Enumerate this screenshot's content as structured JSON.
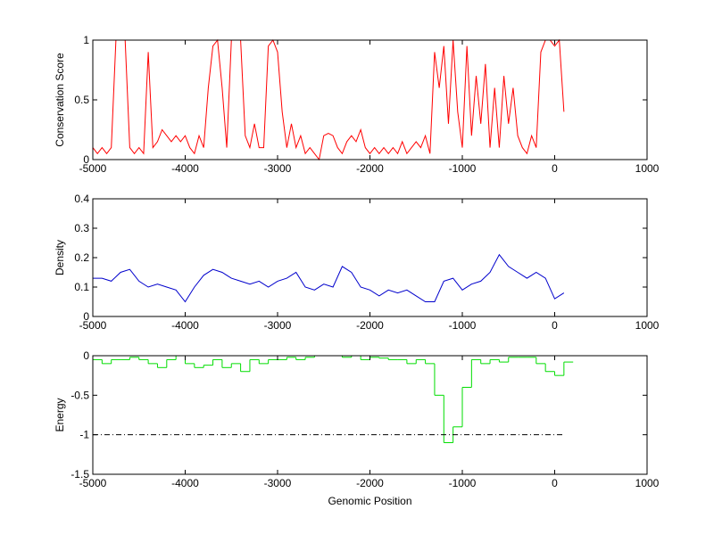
{
  "chart_data": [
    {
      "type": "line",
      "ylabel": "Conservation Score",
      "xlim": [
        -5000,
        1000
      ],
      "xticks": [
        -5000,
        -4000,
        -3000,
        -2000,
        -1000,
        0,
        1000
      ],
      "ylim": [
        0,
        1
      ],
      "yticks": [
        0,
        0.5,
        1
      ],
      "series": [
        {
          "color": "#ff0000",
          "style": "line",
          "x": [
            -5000,
            -4950,
            -4900,
            -4850,
            -4800,
            -4750,
            -4700,
            -4650,
            -4600,
            -4550,
            -4500,
            -4450,
            -4400,
            -4350,
            -4300,
            -4250,
            -4200,
            -4150,
            -4100,
            -4050,
            -4000,
            -3950,
            -3900,
            -3850,
            -3800,
            -3750,
            -3700,
            -3650,
            -3600,
            -3550,
            -3500,
            -3450,
            -3400,
            -3350,
            -3300,
            -3250,
            -3200,
            -3150,
            -3100,
            -3050,
            -3000,
            -2950,
            -2900,
            -2850,
            -2800,
            -2750,
            -2700,
            -2650,
            -2600,
            -2550,
            -2500,
            -2450,
            -2400,
            -2350,
            -2300,
            -2250,
            -2200,
            -2150,
            -2100,
            -2050,
            -2000,
            -1950,
            -1900,
            -1850,
            -1800,
            -1750,
            -1700,
            -1650,
            -1600,
            -1550,
            -1500,
            -1450,
            -1400,
            -1350,
            -1300,
            -1250,
            -1200,
            -1150,
            -1100,
            -1050,
            -1000,
            -950,
            -900,
            -850,
            -800,
            -750,
            -700,
            -650,
            -600,
            -550,
            -500,
            -450,
            -400,
            -350,
            -300,
            -250,
            -200,
            -150,
            -100,
            -50,
            0,
            50,
            100
          ],
          "values": [
            0.1,
            0.05,
            0.1,
            0.05,
            0.1,
            1,
            1,
            1,
            0.1,
            0.05,
            0.1,
            0.05,
            0.9,
            0.1,
            0.15,
            0.25,
            0.2,
            0.15,
            0.2,
            0.15,
            0.2,
            0.1,
            0.05,
            0.2,
            0.1,
            0.6,
            0.95,
            1,
            0.6,
            0.1,
            1,
            1,
            1,
            0.2,
            0.1,
            0.3,
            0.1,
            0.1,
            0.95,
            1,
            0.9,
            0.4,
            0.1,
            0.3,
            0.1,
            0.2,
            0.05,
            0.1,
            0.05,
            0,
            0.2,
            0.22,
            0.2,
            0.1,
            0.05,
            0.15,
            0.2,
            0.15,
            0.25,
            0.1,
            0.05,
            0.1,
            0.05,
            0.1,
            0.05,
            0.1,
            0.05,
            0.15,
            0.05,
            0.1,
            0.15,
            0.1,
            0.2,
            0.05,
            0.9,
            0.6,
            0.95,
            0.3,
            1,
            0.4,
            0.1,
            0.95,
            0.2,
            0.7,
            0.3,
            0.8,
            0.1,
            0.6,
            0.1,
            0.7,
            0.3,
            0.6,
            0.2,
            0.1,
            0.05,
            0.2,
            0.1,
            0.9,
            1,
            1,
            0.95,
            1,
            0.4
          ]
        }
      ]
    },
    {
      "type": "line",
      "ylabel": "Density",
      "xlim": [
        -5000,
        1000
      ],
      "xticks": [
        -5000,
        -4000,
        -3000,
        -2000,
        -1000,
        0,
        1000
      ],
      "ylim": [
        0,
        0.4
      ],
      "yticks": [
        0,
        0.1,
        0.2,
        0.3,
        0.4
      ],
      "series": [
        {
          "color": "#0000cc",
          "style": "line",
          "x": [
            -5000,
            -4900,
            -4800,
            -4700,
            -4600,
            -4500,
            -4400,
            -4300,
            -4200,
            -4100,
            -4000,
            -3900,
            -3800,
            -3700,
            -3600,
            -3500,
            -3400,
            -3300,
            -3200,
            -3100,
            -3000,
            -2900,
            -2800,
            -2700,
            -2600,
            -2500,
            -2400,
            -2300,
            -2200,
            -2100,
            -2000,
            -1900,
            -1800,
            -1700,
            -1600,
            -1500,
            -1400,
            -1300,
            -1200,
            -1100,
            -1000,
            -900,
            -800,
            -700,
            -600,
            -500,
            -400,
            -300,
            -200,
            -100,
            0,
            100
          ],
          "values": [
            0.13,
            0.13,
            0.12,
            0.15,
            0.16,
            0.12,
            0.1,
            0.11,
            0.1,
            0.09,
            0.05,
            0.1,
            0.14,
            0.16,
            0.15,
            0.13,
            0.12,
            0.11,
            0.12,
            0.1,
            0.12,
            0.13,
            0.15,
            0.1,
            0.09,
            0.11,
            0.1,
            0.17,
            0.15,
            0.1,
            0.09,
            0.07,
            0.09,
            0.08,
            0.09,
            0.07,
            0.05,
            0.05,
            0.12,
            0.13,
            0.09,
            0.11,
            0.12,
            0.15,
            0.21,
            0.17,
            0.15,
            0.13,
            0.15,
            0.13,
            0.06,
            0.08
          ]
        }
      ]
    },
    {
      "type": "line",
      "ylabel": "Energy",
      "xlabel": "Genomic Position",
      "xlim": [
        -5000,
        1000
      ],
      "xticks": [
        -5000,
        -4000,
        -3000,
        -2000,
        -1000,
        0,
        1000
      ],
      "ylim": [
        -1.5,
        0
      ],
      "yticks": [
        -1.5,
        -1,
        -0.5,
        0
      ],
      "series": [
        {
          "color": "#00dd00",
          "style": "steps",
          "x": [
            -5000,
            -4900,
            -4800,
            -4700,
            -4600,
            -4500,
            -4400,
            -4300,
            -4200,
            -4100,
            -4000,
            -3900,
            -3800,
            -3700,
            -3600,
            -3500,
            -3400,
            -3300,
            -3200,
            -3100,
            -3000,
            -2900,
            -2800,
            -2700,
            -2600,
            -2500,
            -2400,
            -2300,
            -2200,
            -2100,
            -2000,
            -1900,
            -1800,
            -1700,
            -1600,
            -1500,
            -1400,
            -1300,
            -1200,
            -1100,
            -1000,
            -900,
            -800,
            -700,
            -600,
            -500,
            -400,
            -300,
            -200,
            -100,
            0,
            100
          ],
          "values": [
            -0.05,
            -0.1,
            -0.05,
            -0.05,
            -0.02,
            -0.05,
            -0.1,
            -0.15,
            -0.05,
            0,
            -0.1,
            -0.15,
            -0.12,
            -0.05,
            -0.15,
            -0.1,
            -0.2,
            -0.05,
            -0.1,
            -0.05,
            -0.05,
            -0.02,
            -0.05,
            -0.02,
            0,
            0,
            0,
            -0.02,
            0,
            -0.05,
            -0.02,
            -0.03,
            -0.05,
            -0.05,
            -0.1,
            -0.05,
            -0.1,
            -0.5,
            -1.1,
            -0.9,
            -0.4,
            -0.05,
            -0.1,
            -0.05,
            -0.08,
            -0.02,
            -0.02,
            -0.02,
            -0.1,
            -0.2,
            -0.25,
            -0.08
          ]
        },
        {
          "color": "#000000",
          "style": "dashdot",
          "x": [
            -5000,
            100
          ],
          "values": [
            -1,
            -1
          ]
        }
      ]
    }
  ]
}
